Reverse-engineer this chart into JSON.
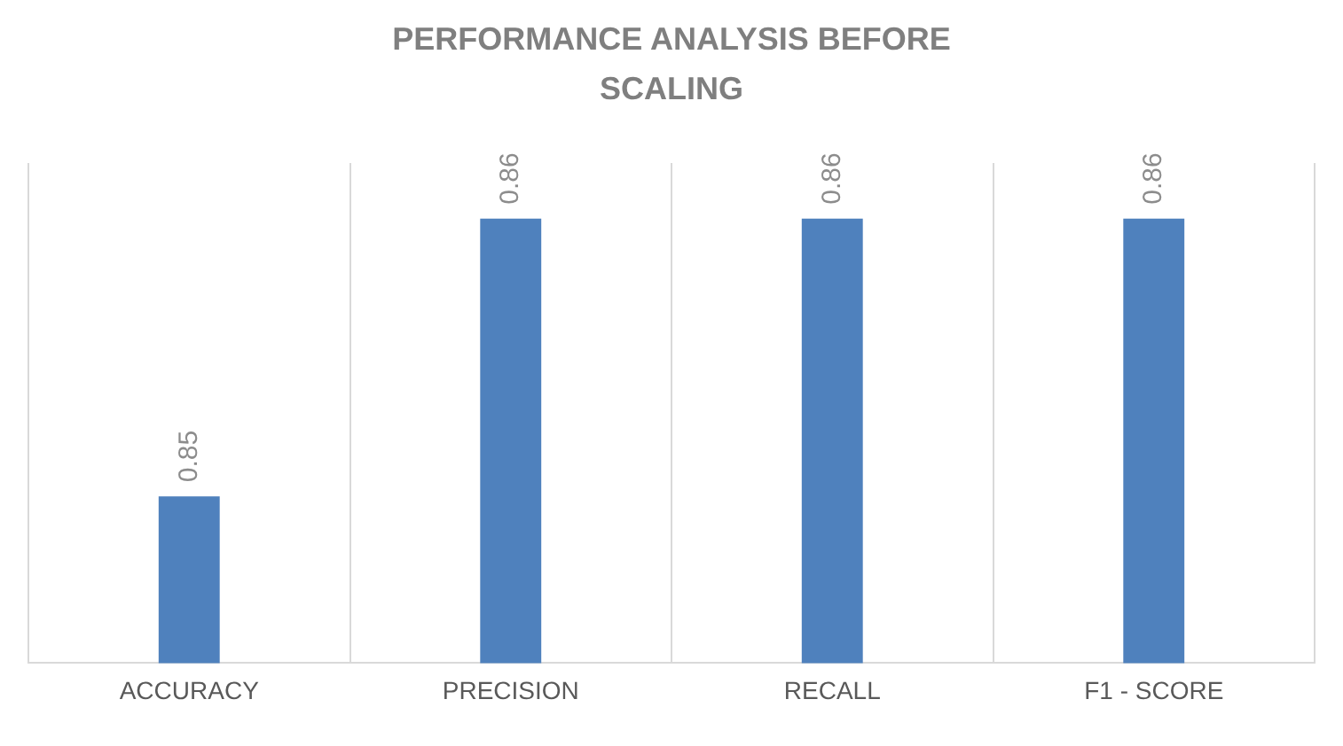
{
  "chart_data": {
    "type": "bar",
    "title": "PERFORMANCE ANALYSIS BEFORE SCALING",
    "categories": [
      "ACCURACY",
      "PRECISION",
      "RECALL",
      "F1 - SCORE"
    ],
    "values": [
      0.85,
      0.86,
      0.86,
      0.86
    ],
    "color": "#4f81bd",
    "ylim": [
      0.844,
      0.862
    ],
    "tick_labels": "x",
    "grid": "x",
    "data_labels": true
  }
}
